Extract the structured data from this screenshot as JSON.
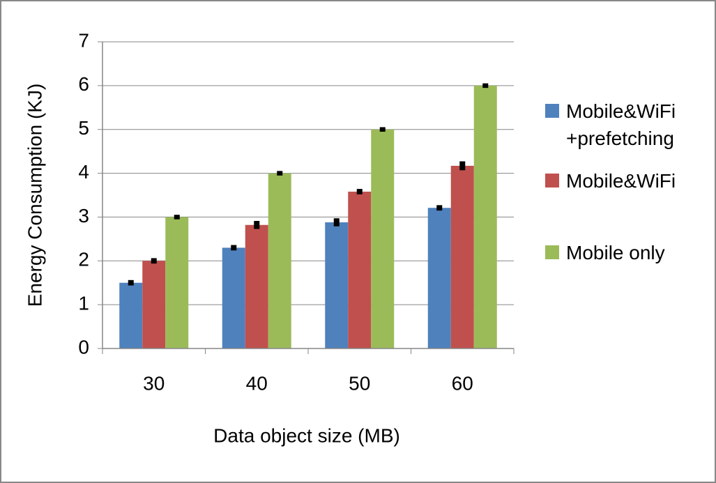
{
  "chart_data": {
    "type": "bar",
    "x_label": "Data object size (MB)",
    "y_label": "Energy Consumption (KJ)",
    "categories": [
      "30",
      "40",
      "50",
      "60"
    ],
    "series": [
      {
        "name": "Mobile&WiFi +prefetching",
        "color": "#4f81bd",
        "values": [
          1.5,
          2.3,
          2.88,
          3.21
        ],
        "errors": [
          0.03,
          0.03,
          0.06,
          0.03
        ]
      },
      {
        "name": "Mobile&WiFi",
        "color": "#c0504d",
        "values": [
          2.0,
          2.82,
          3.58,
          4.17
        ],
        "errors": [
          0.03,
          0.06,
          0.03,
          0.07
        ]
      },
      {
        "name": "Mobile only",
        "color": "#9bbb59",
        "values": [
          3,
          4,
          5,
          6
        ],
        "errors": [
          0.02,
          0.02,
          0.02,
          0.02
        ]
      }
    ],
    "ylim": [
      0,
      7
    ],
    "yticks": [
      0,
      1,
      2,
      3,
      4,
      5,
      6,
      7
    ],
    "grid": true,
    "legend": "right"
  }
}
